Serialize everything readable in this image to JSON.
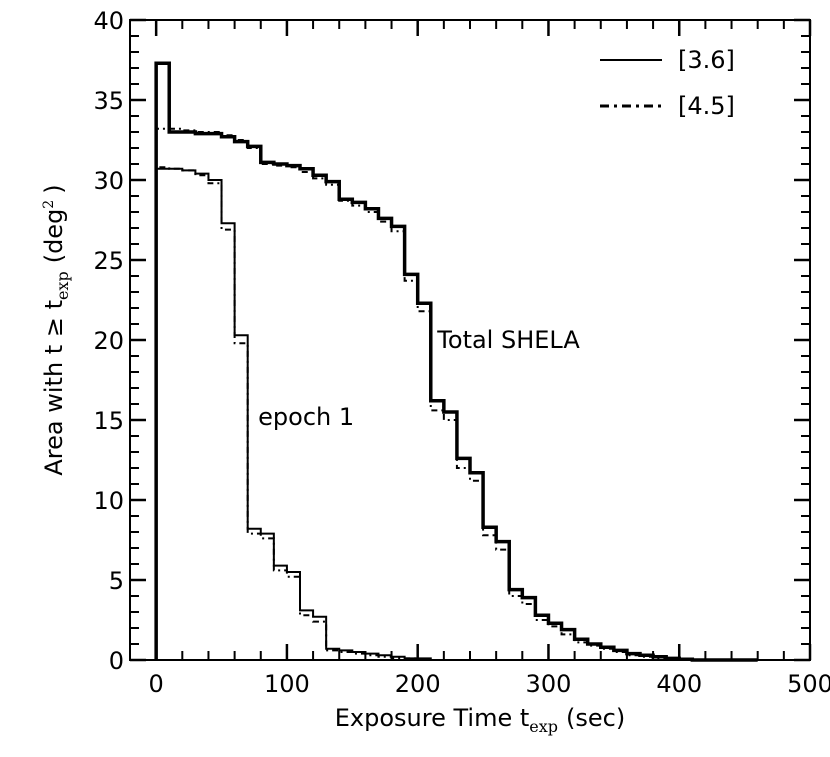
{
  "chart_data": {
    "type": "line",
    "title": "",
    "xlabel": {
      "main": "Exposure Time t",
      "sub": "exp",
      "unit": "(sec)"
    },
    "ylabel": {
      "main": "Area with t ≥ t",
      "sub": "exp",
      "unit_open": "(deg",
      "sup": "2",
      "unit_close": ")"
    },
    "xlim": [
      -20,
      500
    ],
    "ylim": [
      0,
      40
    ],
    "xticks": [
      0,
      100,
      200,
      300,
      400,
      500
    ],
    "xtick_labels": [
      "0",
      "100",
      "200",
      "300",
      "400",
      "500"
    ],
    "yticks": [
      0,
      5,
      10,
      15,
      20,
      25,
      30,
      35,
      40
    ],
    "ytick_labels": [
      "0",
      "5",
      "10",
      "15",
      "20",
      "25",
      "30",
      "35",
      "40"
    ],
    "legend": {
      "position": "top-right",
      "entries": [
        "[3.6]",
        "[4.5]"
      ]
    },
    "annotations": [
      {
        "text": "Total SHELA",
        "x": 215,
        "y": 19.5
      },
      {
        "text": "epoch 1",
        "x": 78,
        "y": 14.7
      }
    ],
    "series": [
      {
        "name": "Total SHELA [3.6]",
        "style": "solid-thick",
        "x": [
          0,
          10,
          20,
          30,
          40,
          50,
          60,
          70,
          80,
          90,
          100,
          110,
          120,
          130,
          140,
          150,
          160,
          170,
          180,
          190,
          200,
          210,
          220,
          230,
          240,
          250,
          260,
          270,
          280,
          290,
          300,
          310,
          320,
          330,
          340,
          350,
          360,
          370,
          380,
          390,
          400,
          410,
          420,
          430,
          440,
          450
        ],
        "y": [
          37.3,
          33.0,
          33.0,
          32.9,
          32.9,
          32.7,
          32.4,
          32.1,
          31.1,
          31.0,
          30.9,
          30.7,
          30.3,
          29.9,
          28.8,
          28.6,
          28.2,
          27.6,
          27.1,
          24.1,
          22.3,
          16.2,
          15.5,
          12.6,
          11.7,
          8.3,
          7.4,
          4.4,
          3.9,
          2.8,
          2.3,
          1.9,
          1.3,
          1.0,
          0.8,
          0.6,
          0.4,
          0.3,
          0.2,
          0.1,
          0.05,
          0.0,
          0.0,
          0.0,
          0.0,
          0.0
        ]
      },
      {
        "name": "Total SHELA [4.5]",
        "style": "dashdot",
        "x": [
          0,
          10,
          20,
          30,
          40,
          50,
          60,
          70,
          80,
          90,
          100,
          110,
          120,
          130,
          140,
          150,
          160,
          170,
          180,
          190,
          200,
          210,
          220,
          230,
          240,
          250,
          260,
          270,
          280,
          290,
          300,
          310,
          320,
          330,
          340,
          350,
          360,
          370,
          380,
          390,
          400,
          410,
          420,
          430,
          440,
          450
        ],
        "y": [
          33.2,
          33.2,
          33.1,
          33.0,
          33.0,
          32.8,
          32.5,
          32.0,
          31.0,
          30.9,
          30.8,
          30.5,
          30.1,
          29.7,
          28.7,
          28.4,
          28.0,
          27.4,
          26.8,
          23.7,
          21.8,
          15.6,
          15.0,
          12.0,
          11.2,
          7.8,
          6.9,
          4.0,
          3.5,
          2.5,
          2.1,
          1.6,
          1.1,
          0.9,
          0.7,
          0.5,
          0.3,
          0.2,
          0.1,
          0.05,
          0.0,
          0.0,
          0.0,
          0.0,
          0.0,
          0.0
        ]
      },
      {
        "name": "epoch 1 [3.6]",
        "style": "solid-thin",
        "x": [
          0,
          10,
          20,
          30,
          40,
          50,
          60,
          70,
          80,
          90,
          100,
          110,
          120,
          130,
          140,
          150,
          160,
          170,
          180,
          190,
          200,
          210,
          220,
          230,
          240
        ],
        "y": [
          30.7,
          30.7,
          30.6,
          30.4,
          30.0,
          27.3,
          20.3,
          8.2,
          7.9,
          5.9,
          5.5,
          3.1,
          2.7,
          0.7,
          0.6,
          0.5,
          0.4,
          0.3,
          0.2,
          0.1,
          0.1,
          0.0,
          0.0,
          0.0,
          0.0
        ]
      },
      {
        "name": "epoch 1 [4.5]",
        "style": "dashdot",
        "x": [
          0,
          10,
          20,
          30,
          40,
          50,
          60,
          70,
          80,
          90,
          100,
          110,
          120,
          130,
          140,
          150,
          160,
          170,
          180,
          190,
          200,
          210,
          220,
          230,
          240
        ],
        "y": [
          30.8,
          30.7,
          30.6,
          30.3,
          29.8,
          26.9,
          19.8,
          7.9,
          7.6,
          5.6,
          5.2,
          2.8,
          2.4,
          0.6,
          0.5,
          0.4,
          0.3,
          0.2,
          0.1,
          0.1,
          0.0,
          0.0,
          0.0,
          0.0,
          0.0
        ]
      }
    ]
  }
}
